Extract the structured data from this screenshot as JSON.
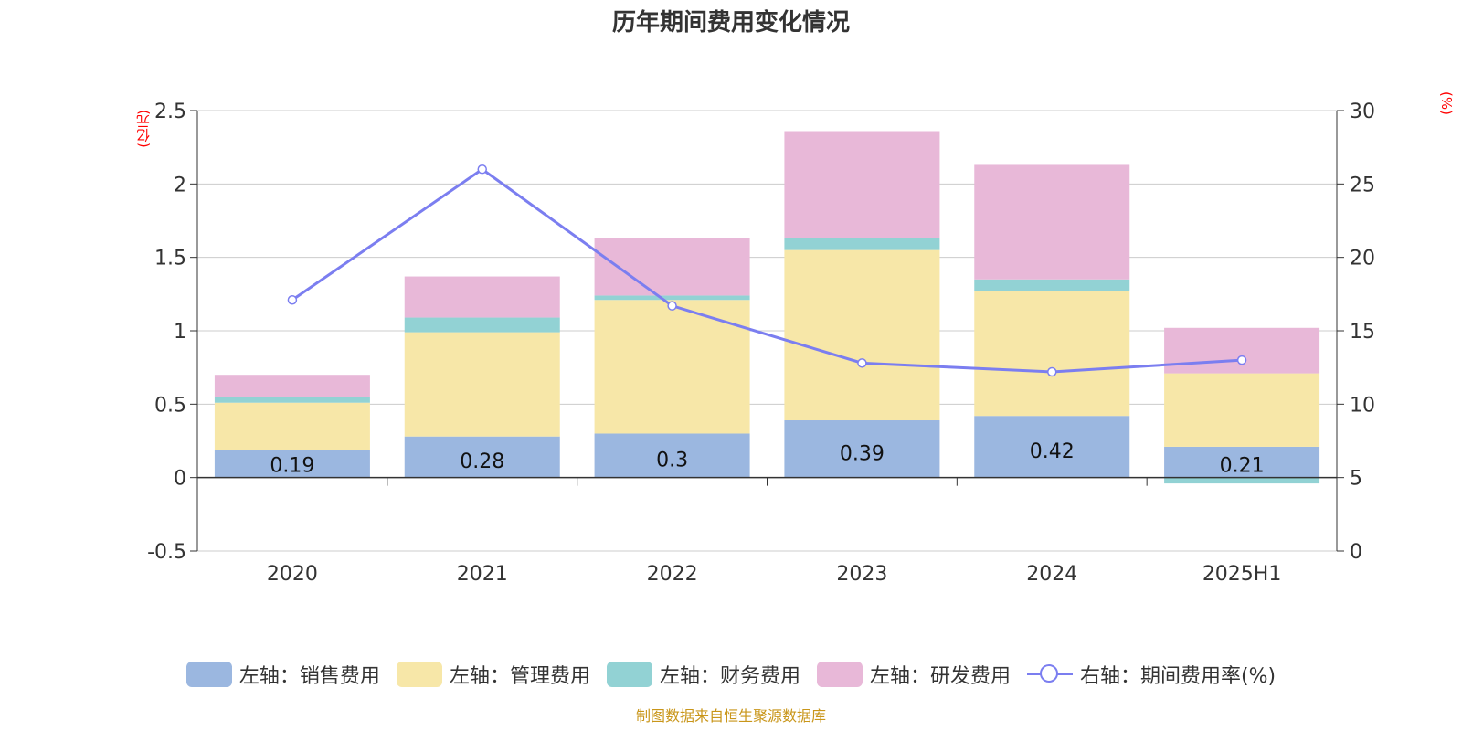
{
  "title": "历年期间费用变化情况",
  "source": "制图数据来自恒生聚源数据库",
  "chart_data": {
    "type": "bar",
    "stacked": true,
    "title": "历年期间费用变化情况",
    "categories": [
      "2020",
      "2021",
      "2022",
      "2023",
      "2024",
      "2025H1"
    ],
    "y_left": {
      "unit": "(亿元)",
      "ticks": [
        "2.5",
        "2",
        "1.5",
        "1",
        "0.5",
        "0",
        "-0.5"
      ],
      "range": [
        -0.5,
        2.5
      ]
    },
    "y_right": {
      "unit": "(%)",
      "ticks": [
        "30",
        "25",
        "20",
        "15",
        "10",
        "5",
        "0"
      ],
      "range": [
        0,
        30
      ]
    },
    "series": [
      {
        "name": "左轴：销售费用",
        "axis": "left",
        "type": "bar",
        "color": "#9bb7e0",
        "values": [
          0.19,
          0.28,
          0.3,
          0.39,
          0.42,
          0.21
        ],
        "labels": [
          "0.19",
          "0.28",
          "0.3",
          "0.39",
          "0.42",
          "0.21"
        ]
      },
      {
        "name": "左轴：管理费用",
        "axis": "left",
        "type": "bar",
        "color": "#f7e7a8",
        "values": [
          0.32,
          0.71,
          0.91,
          1.16,
          0.85,
          0.5
        ]
      },
      {
        "name": "左轴：财务费用",
        "axis": "left",
        "type": "bar",
        "color": "#92d2d4",
        "values": [
          0.04,
          0.1,
          0.03,
          0.08,
          0.08,
          -0.04
        ]
      },
      {
        "name": "左轴：研发费用",
        "axis": "left",
        "type": "bar",
        "color": "#e8b8d8",
        "values": [
          0.15,
          0.28,
          0.39,
          0.73,
          0.78,
          0.31
        ]
      },
      {
        "name": "右轴：期间费用率(%)",
        "axis": "right",
        "type": "line",
        "color": "#7b7ef0",
        "values": [
          17.1,
          26.0,
          16.7,
          12.8,
          12.2,
          13.0
        ]
      }
    ]
  }
}
